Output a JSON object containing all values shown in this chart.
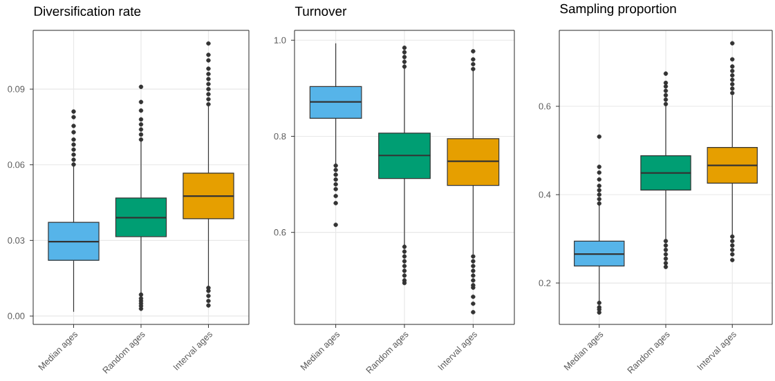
{
  "chart_data": [
    {
      "type": "box",
      "title": "Diversification rate",
      "categories": [
        "Median ages",
        "Random ages",
        "Interval ages"
      ],
      "colors": [
        "#56b4e9",
        "#009e73",
        "#e69f00"
      ],
      "boxes": [
        {
          "low": 0.0017,
          "q1": 0.0221,
          "median": 0.0295,
          "q3": 0.0372,
          "high": 0.0596,
          "outliers": [
            0.0601,
            0.062,
            0.064,
            0.066,
            0.068,
            0.07,
            0.0729,
            0.0754,
            0.0789,
            0.0811
          ]
        },
        {
          "low": 0.009,
          "q1": 0.0315,
          "median": 0.039,
          "q3": 0.0468,
          "high": 0.0692,
          "outliers": [
            0.0029,
            0.004,
            0.005,
            0.006,
            0.007,
            0.0085,
            0.07,
            0.072,
            0.074,
            0.076,
            0.078,
            0.0815,
            0.0849,
            0.0909
          ]
        },
        {
          "low": 0.0118,
          "q1": 0.0386,
          "median": 0.0476,
          "q3": 0.0567,
          "high": 0.0834,
          "outliers": [
            0.0042,
            0.006,
            0.008,
            0.01,
            0.0112,
            0.084,
            0.086,
            0.088,
            0.09,
            0.092,
            0.094,
            0.096,
            0.0981,
            0.1014,
            0.1036,
            0.1081
          ]
        }
      ],
      "ylim": [
        -0.0033,
        0.1133
      ],
      "yticks": [
        {
          "value": 0,
          "label": "0.00"
        },
        0.03,
        0.06,
        0.09
      ],
      "grid": true
    },
    {
      "type": "box",
      "title": "Turnover",
      "categories": [
        "Median ages",
        "Random ages",
        "Interval ages"
      ],
      "colors": [
        "#56b4e9",
        "#009e73",
        "#e69f00"
      ],
      "boxes": [
        {
          "low": 0.7414,
          "q1": 0.8376,
          "median": 0.8716,
          "q3": 0.9037,
          "high": 0.9937,
          "outliers": [
            0.739,
            0.73,
            0.72,
            0.71,
            0.7,
            0.69,
            0.6757,
            0.6609,
            0.6158
          ]
        },
        {
          "low": 0.5737,
          "q1": 0.7121,
          "median": 0.7601,
          "q3": 0.8065,
          "high": 0.9411,
          "outliers": [
            0.945,
            0.955,
            0.965,
            0.975,
            0.9842,
            0.57,
            0.56,
            0.55,
            0.54,
            0.53,
            0.52,
            0.51,
            0.5,
            0.4947
          ]
        },
        {
          "low": 0.5546,
          "q1": 0.6977,
          "median": 0.748,
          "q3": 0.795,
          "high": 0.9376,
          "outliers": [
            0.94,
            0.95,
            0.96,
            0.977,
            0.55,
            0.54,
            0.53,
            0.52,
            0.51,
            0.5,
            0.49,
            0.485,
            0.466,
            0.4516,
            0.4339
          ]
        }
      ],
      "ylim": [
        0.4085,
        1.0205
      ],
      "yticks": [
        0.6,
        0.8,
        {
          "value": 1.0,
          "label": "1.0"
        }
      ],
      "grid": true
    },
    {
      "type": "box",
      "title": "Sampling proportion",
      "categories": [
        "Median ages",
        "Random ages",
        "Interval ages"
      ],
      "colors": [
        "#56b4e9",
        "#009e73",
        "#e69f00"
      ],
      "boxes": [
        {
          "low": 0.1583,
          "q1": 0.2385,
          "median": 0.2656,
          "q3": 0.2948,
          "high": 0.3771,
          "outliers": [
            0.38,
            0.39,
            0.4,
            0.41,
            0.42,
            0.4344,
            0.45,
            0.463,
            0.5313,
            0.155,
            0.145,
            0.14,
            0.1333
          ]
        },
        {
          "low": 0.3,
          "q1": 0.4104,
          "median": 0.449,
          "q3": 0.488,
          "high": 0.601,
          "outliers": [
            0.605,
            0.615,
            0.625,
            0.635,
            0.645,
            0.653,
            0.674,
            0.295,
            0.285,
            0.275,
            0.265,
            0.255,
            0.245,
            0.2365
          ]
        },
        {
          "low": 0.3094,
          "q1": 0.4261,
          "median": 0.4661,
          "q3": 0.5068,
          "high": 0.6245,
          "outliers": [
            0.63,
            0.64,
            0.65,
            0.66,
            0.67,
            0.68,
            0.69,
            0.7063,
            0.7427,
            0.305,
            0.295,
            0.285,
            0.275,
            0.265,
            0.252
          ]
        }
      ],
      "ylim": [
        0.1063,
        0.7719
      ],
      "yticks": [
        0.2,
        0.4,
        0.6
      ],
      "grid": true
    }
  ]
}
